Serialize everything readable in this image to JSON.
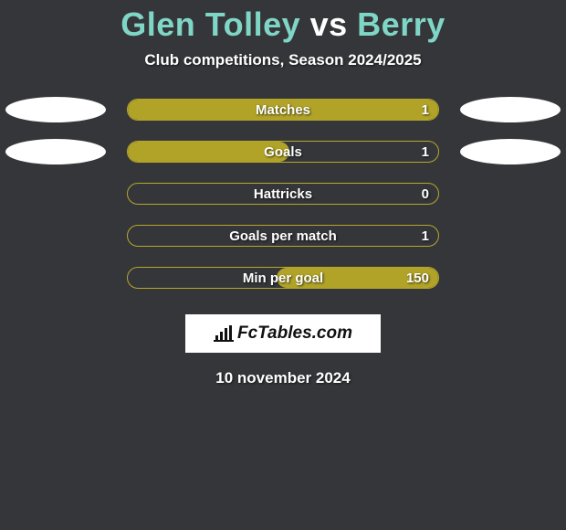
{
  "background_color": "#35363a",
  "title": {
    "player1": "Glen Tolley",
    "vs": " vs ",
    "player2": "Berry",
    "color1": "#7fd6c6",
    "color_vs": "#ffffff",
    "color2": "#7fd6c6"
  },
  "subtitle": "Club competitions, Season 2024/2025",
  "bar_style": {
    "track_width": 342,
    "track_height": 24,
    "border_radius": 12,
    "border_color": "#b7a72b",
    "fill_color": "#b0a327",
    "label_color": "#ffffff",
    "label_fontsize": 15,
    "value_color": "#ffffff"
  },
  "side_ellipse": {
    "color": "#ffffff",
    "width": 110,
    "height": 28
  },
  "rows": [
    {
      "label": "Matches",
      "left": "",
      "right": "1",
      "fill_from": "left",
      "fill_pct": 100,
      "show_left_ellipse": true,
      "show_right_ellipse": true
    },
    {
      "label": "Goals",
      "left": "",
      "right": "1",
      "fill_from": "left",
      "fill_pct": 52,
      "show_left_ellipse": true,
      "show_right_ellipse": true
    },
    {
      "label": "Hattricks",
      "left": "",
      "right": "0",
      "fill_from": "left",
      "fill_pct": 0,
      "show_left_ellipse": false,
      "show_right_ellipse": false
    },
    {
      "label": "Goals per match",
      "left": "",
      "right": "1",
      "fill_from": "left",
      "fill_pct": 0,
      "show_left_ellipse": false,
      "show_right_ellipse": false
    },
    {
      "label": "Min per goal",
      "left": "",
      "right": "150",
      "fill_from": "right",
      "fill_pct": 52,
      "show_left_ellipse": false,
      "show_right_ellipse": false
    }
  ],
  "logo": {
    "icon_name": "bar-chart-icon",
    "text": "FcTables.com",
    "box_bg": "#ffffff",
    "text_color": "#111111"
  },
  "date": "10 november 2024"
}
